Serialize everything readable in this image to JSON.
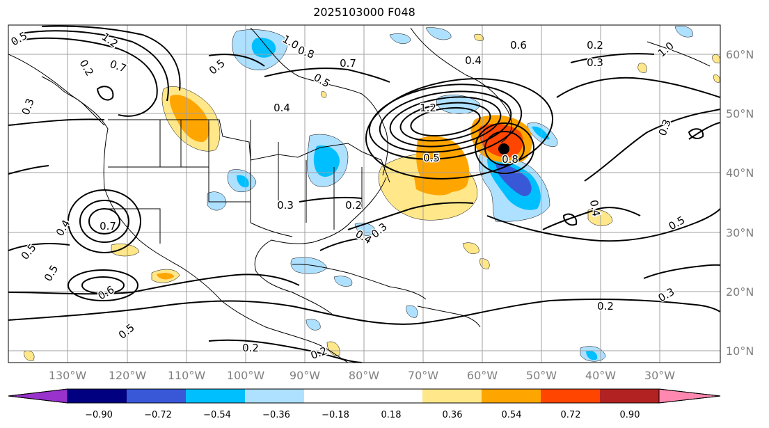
{
  "map": {
    "title": "2025103000 F048",
    "lon_labels": [
      "130°W",
      "120°W",
      "110°W",
      "100°W",
      "90°W",
      "80°W",
      "70°W",
      "60°W",
      "50°W",
      "40°W",
      "30°W"
    ],
    "lat_labels": [
      "60°N",
      "50°N",
      "40°N",
      "30°N",
      "20°N",
      "10°N"
    ],
    "contour_labels": [
      "0.5",
      "1.2",
      "0.7",
      "0.3",
      "1.0",
      "0.8",
      "0.5",
      "0.7",
      "0.4",
      "0.6",
      "0.2",
      "0.3",
      "1.0",
      "0.4",
      "0.5",
      "0.8",
      "1.2",
      "0.5",
      "0.7",
      "0.5",
      "0.4",
      "0.3",
      "0.2",
      "0.3",
      "0.4",
      "0.3",
      "0.5",
      "0.6",
      "0.5",
      "0.4",
      "0.5",
      "0.2",
      "0.3",
      "0.2",
      "0.2",
      "0.2"
    ],
    "colors": {
      "purple": "#9932cc",
      "navy": "#000080",
      "royal": "#3858d8",
      "deepsky": "#00bfff",
      "lightblue": "#aee0ff",
      "white": "#ffffff",
      "lightyellow": "#ffe78a",
      "orange": "#ffa500",
      "orangered": "#ff4500",
      "firebrick": "#b22222",
      "pink": "#ff88b0"
    }
  },
  "colorbar": {
    "ticks": [
      "−0.90",
      "−0.72",
      "−0.54",
      "−0.36",
      "−0.18",
      "0.18",
      "0.36",
      "0.54",
      "0.72",
      "0.90"
    ]
  }
}
